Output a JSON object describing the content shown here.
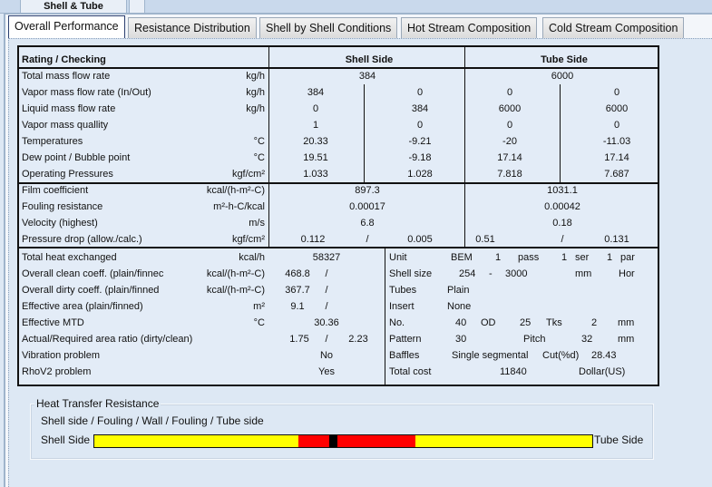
{
  "window": {
    "top_tab": "Shell & Tube"
  },
  "tabs": [
    {
      "label": "Overall Performance"
    },
    {
      "label": "Resistance Distribution"
    },
    {
      "label": "Shell by Shell Conditions"
    },
    {
      "label": "Hot Stream Composition"
    },
    {
      "label": "Cold Stream Composition"
    }
  ],
  "table": {
    "header": {
      "title": "Rating / Checking",
      "shell": "Shell Side",
      "tube": "Tube Side"
    },
    "section1": [
      {
        "label": "Total mass flow rate",
        "unit": "kg/h",
        "shell": [
          "384"
        ],
        "tube": [
          "6000"
        ]
      },
      {
        "label": "Vapor mass flow rate (In/Out)",
        "unit": "kg/h",
        "shell": [
          "384",
          "0"
        ],
        "tube": [
          "0",
          "0"
        ]
      },
      {
        "label": "Liquid mass flow rate",
        "unit": "kg/h",
        "shell": [
          "0",
          "384"
        ],
        "tube": [
          "6000",
          "6000"
        ]
      },
      {
        "label": "Vapor mass quallity",
        "unit": "",
        "shell": [
          "1",
          "0"
        ],
        "tube": [
          "0",
          "0"
        ]
      },
      {
        "label": "Temperatures",
        "unit": "°C",
        "shell": [
          "20.33",
          "-9.21"
        ],
        "tube": [
          "-20",
          "-11.03"
        ]
      },
      {
        "label": "Dew point / Bubble point",
        "unit": "°C",
        "shell": [
          "19.51",
          "-9.18"
        ],
        "tube": [
          "17.14",
          "17.14"
        ]
      },
      {
        "label": "Operating Pressures",
        "unit": "kgf/cm²",
        "shell": [
          "1.033",
          "1.028"
        ],
        "tube": [
          "7.818",
          "7.687"
        ]
      }
    ],
    "section2": [
      {
        "label": "Film coefficient",
        "unit": "kcal/(h-m²-C)",
        "shell": [
          "897.3"
        ],
        "tube": [
          "1031.1"
        ]
      },
      {
        "label": "Fouling resistance",
        "unit": "m²-h-C/kcal",
        "shell": [
          "0.00017"
        ],
        "tube": [
          "0.00042"
        ]
      },
      {
        "label": "Velocity (highest)",
        "unit": "m/s",
        "shell": [
          "6.8"
        ],
        "tube": [
          "0.18"
        ]
      },
      {
        "label": "Pressure drop (allow./calc.)",
        "unit": "kgf/cm²",
        "shell": [
          "0.112",
          "/",
          "0.005"
        ],
        "tube": [
          "0.51",
          "/",
          "0.131"
        ]
      }
    ],
    "section3": [
      {
        "label": "Total heat exchanged",
        "unit": "kcal/h",
        "vals": [
          "58327"
        ]
      },
      {
        "label": "Overall clean coeff. (plain/finnec",
        "unit": "kcal/(h-m²-C)",
        "vals": [
          "468.8",
          "/"
        ]
      },
      {
        "label": "Overall dirty coeff. (plain/finned",
        "unit": "kcal/(h-m²-C)",
        "vals": [
          "367.7",
          "/"
        ]
      },
      {
        "label": "Effective area (plain/finned)",
        "unit": "m²",
        "vals": [
          "9.1",
          "/"
        ]
      },
      {
        "label": "Effective MTD",
        "unit": "°C",
        "vals": [
          "30.36"
        ]
      },
      {
        "label": "Actual/Required area ratio (dirty/clean)",
        "unit": "",
        "vals": [
          "1.75",
          "/",
          "2.23"
        ]
      },
      {
        "label": "Vibration problem",
        "unit": "",
        "vals": [
          "No"
        ]
      },
      {
        "label": "RhoV2 problem",
        "unit": "",
        "vals": [
          "Yes"
        ]
      }
    ],
    "geometry": [
      [
        "Unit",
        "BEM",
        "1",
        "pass",
        "1",
        "ser",
        "1",
        "par"
      ],
      [
        "Shell size",
        "254",
        "-",
        "3000",
        "mm",
        "Hor"
      ],
      [
        "Tubes",
        "Plain"
      ],
      [
        "Insert",
        "None"
      ],
      [
        "No.",
        "40",
        "OD",
        "25",
        "Tks",
        "2",
        "mm"
      ],
      [
        "Pattern",
        "30",
        "Pitch",
        "32",
        "mm"
      ],
      [
        "Baffles",
        "Single segmental",
        "Cut(%d)",
        "28.43"
      ],
      [
        "Total cost",
        "11840",
        "Dollar(US)"
      ]
    ]
  },
  "resistance": {
    "group_title": "Heat Transfer Resistance",
    "legend": "Shell side / Fouling / Wall / Fouling / Tube side",
    "left_label": "Shell Side",
    "right_label": "Tube Side",
    "segments": [
      {
        "name": "shell-side",
        "fraction": 0.409,
        "color": "#ffff00"
      },
      {
        "name": "shell-fouling",
        "fraction": 0.062,
        "color": "#ff0000"
      },
      {
        "name": "wall",
        "fraction": 0.018,
        "color": "#000000"
      },
      {
        "name": "tube-fouling",
        "fraction": 0.155,
        "color": "#ff0000"
      },
      {
        "name": "tube-side",
        "fraction": 0.356,
        "color": "#ffff00"
      }
    ]
  }
}
